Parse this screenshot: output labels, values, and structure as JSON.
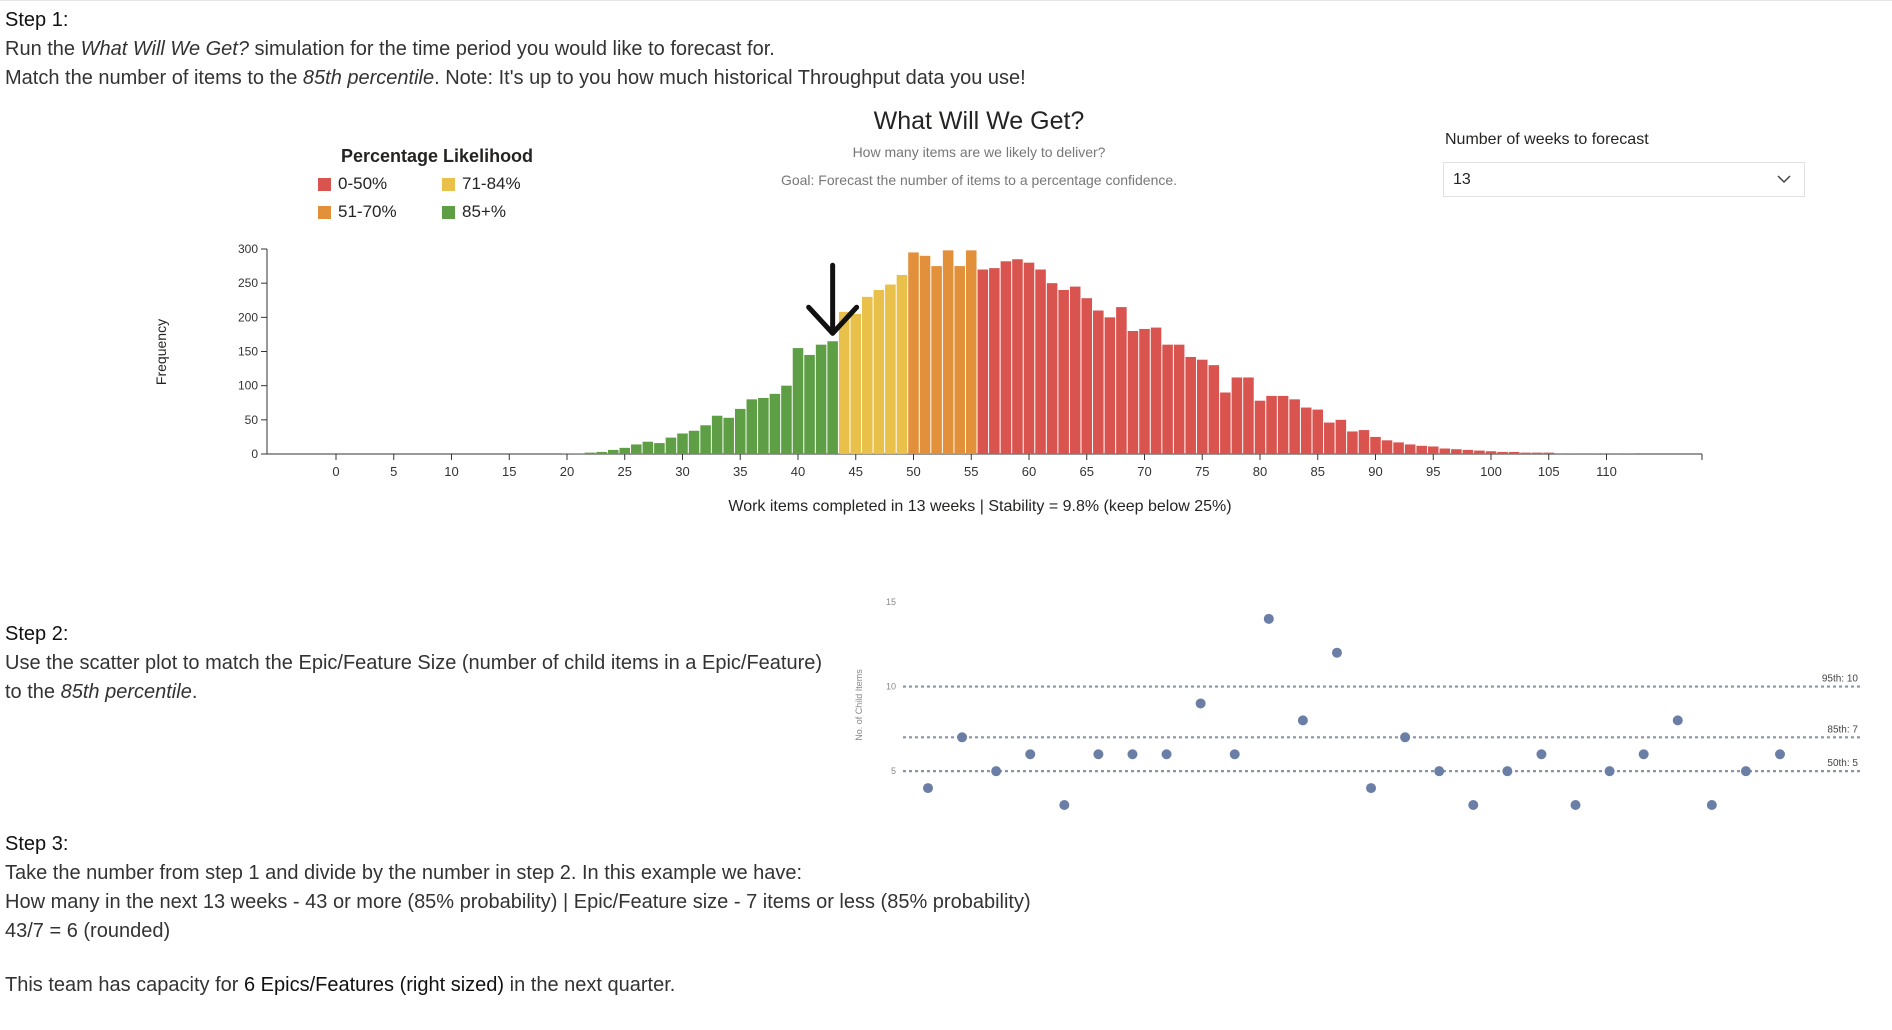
{
  "step1": {
    "title": "Step 1:",
    "line1_a": "Run the ",
    "line1_em": "What Will We Get?",
    "line1_b": " simulation for the time period you would like to forecast for.",
    "line2_a": "Match the number of items to the ",
    "line2_em": "85th percentile",
    "line2_b": ". Note: It's up to you how much historical Throughput data you use!"
  },
  "step2": {
    "title": "Step 2:",
    "line1": "Use the scatter plot to match the Epic/Feature Size (number of child items in a Epic/Feature)",
    "line2_a": "to the ",
    "line2_em": "85th percentile",
    "line2_b": "."
  },
  "step3": {
    "title": "Step 3:",
    "line1": "Take the number from step 1 and divide by the number in step 2. In this example we have:",
    "line2": "How many in the next 13 weeks - 43 or more (85% probability) | Epic/Feature size - 7 items or less (85% probability)",
    "line3": "43/7 = 6 (rounded)",
    "capacity_a": "This team has capacity for ",
    "capacity_b": "6 Epics/Features (right sized)",
    "capacity_c": " in the next quarter."
  },
  "forecast_control": {
    "label": "Number of weeks to forecast",
    "value": "13",
    "chevron_icon": "chevron-down-icon"
  },
  "chart_data": [
    {
      "type": "bar",
      "title": "What Will We Get?",
      "subtitle": "How many items are we likely to deliver?",
      "goal": "Goal: Forecast the number of items to a percentage confidence.",
      "xlabel": "Work items completed in 13 weeks | Stability = 9.8% (keep below 25%)",
      "ylabel": "Frequency",
      "xlim": [
        -5,
        118
      ],
      "ylim": [
        0,
        300
      ],
      "x_ticks": [
        0,
        5,
        10,
        15,
        20,
        25,
        30,
        35,
        40,
        45,
        50,
        55,
        60,
        65,
        70,
        75,
        80,
        85,
        90,
        95,
        100,
        105,
        110
      ],
      "y_ticks": [
        0,
        50,
        100,
        150,
        200,
        250,
        300
      ],
      "legend": {
        "title": "Percentage Likelihood",
        "items": [
          {
            "label": "0-50%",
            "color": "#d9534f"
          },
          {
            "label": "71-84%",
            "color": "#e8c04a"
          },
          {
            "label": "51-70%",
            "color": "#e3903a"
          },
          {
            "label": "85+%",
            "color": "#5e9e45"
          }
        ]
      },
      "band_colors": {
        "85+%": "#5e9e45",
        "71-84%": "#e8c04a",
        "51-70%": "#e3903a",
        "0-50%": "#d9534f"
      },
      "band_ranges": {
        "85+%": [
          0,
          43
        ],
        "71-84%": [
          44,
          49
        ],
        "51-70%": [
          50,
          55
        ],
        "0-50%": [
          56,
          120
        ]
      },
      "marker": {
        "x": 43,
        "icon": "arrow-down-icon"
      },
      "x": [
        20,
        21,
        22,
        23,
        24,
        25,
        26,
        27,
        28,
        29,
        30,
        31,
        32,
        33,
        34,
        35,
        36,
        37,
        38,
        39,
        40,
        41,
        42,
        43,
        44,
        45,
        46,
        47,
        48,
        49,
        50,
        51,
        52,
        53,
        54,
        55,
        56,
        57,
        58,
        59,
        60,
        61,
        62,
        63,
        64,
        65,
        66,
        67,
        68,
        69,
        70,
        71,
        72,
        73,
        74,
        75,
        76,
        77,
        78,
        79,
        80,
        81,
        82,
        83,
        84,
        85,
        86,
        87,
        88,
        89,
        90,
        91,
        92,
        93,
        94,
        95,
        96,
        97,
        98,
        99,
        100,
        101,
        102,
        103,
        104,
        105,
        106,
        107,
        108,
        109,
        110,
        111,
        112,
        113,
        114
      ],
      "values": [
        1,
        1,
        2,
        3,
        6,
        9,
        14,
        18,
        16,
        24,
        30,
        34,
        42,
        56,
        53,
        66,
        80,
        82,
        88,
        100,
        155,
        145,
        160,
        165,
        208,
        205,
        230,
        240,
        248,
        262,
        295,
        290,
        275,
        298,
        275,
        298,
        270,
        272,
        282,
        285,
        280,
        270,
        250,
        240,
        245,
        228,
        210,
        200,
        215,
        180,
        183,
        185,
        160,
        160,
        142,
        138,
        130,
        90,
        112,
        112,
        78,
        85,
        85,
        80,
        68,
        65,
        46,
        50,
        33,
        35,
        25,
        20,
        17,
        14,
        12,
        11,
        8,
        7,
        6,
        5,
        4,
        3,
        3,
        2,
        2,
        2,
        1,
        1,
        1,
        1,
        1,
        1,
        1,
        0,
        0
      ]
    },
    {
      "type": "scatter",
      "ylabel": "No. of Child Items",
      "ylim": [
        3,
        16
      ],
      "y_ticks": [
        5,
        10,
        15
      ],
      "percentiles": [
        {
          "label": "95th: 10",
          "y": 10
        },
        {
          "label": "85th: 7",
          "y": 7
        },
        {
          "label": "50th: 5",
          "y": 5
        }
      ],
      "points": [
        {
          "x": 1,
          "y": 4
        },
        {
          "x": 2,
          "y": 7
        },
        {
          "x": 3,
          "y": 5
        },
        {
          "x": 4,
          "y": 6
        },
        {
          "x": 5,
          "y": 3
        },
        {
          "x": 6,
          "y": 6
        },
        {
          "x": 7,
          "y": 6
        },
        {
          "x": 8,
          "y": 6
        },
        {
          "x": 9,
          "y": 9
        },
        {
          "x": 10,
          "y": 6
        },
        {
          "x": 11,
          "y": 14
        },
        {
          "x": 12,
          "y": 8
        },
        {
          "x": 13,
          "y": 12
        },
        {
          "x": 14,
          "y": 4
        },
        {
          "x": 15,
          "y": 7
        },
        {
          "x": 16,
          "y": 5
        },
        {
          "x": 17,
          "y": 3
        },
        {
          "x": 18,
          "y": 5
        },
        {
          "x": 19,
          "y": 6
        },
        {
          "x": 20,
          "y": 3
        },
        {
          "x": 21,
          "y": 5
        },
        {
          "x": 22,
          "y": 6
        },
        {
          "x": 23,
          "y": 8
        },
        {
          "x": 24,
          "y": 3
        },
        {
          "x": 25,
          "y": 5
        },
        {
          "x": 26,
          "y": 6
        }
      ]
    }
  ]
}
